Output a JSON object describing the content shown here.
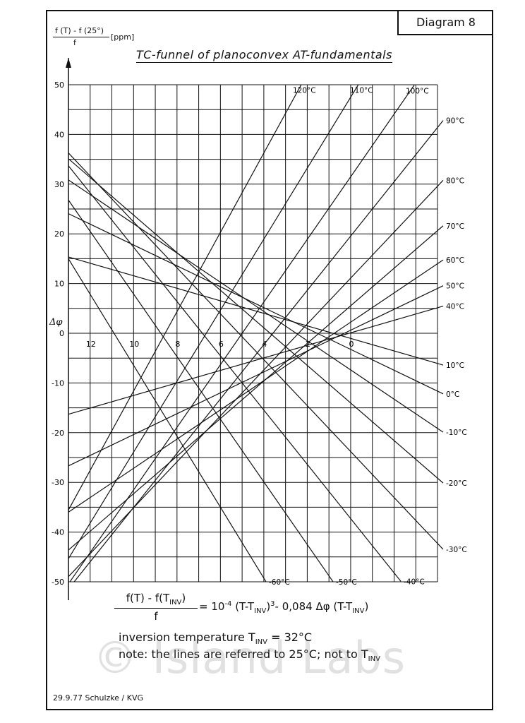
{
  "diagram_number": "Diagram 8",
  "y_axis_label": {
    "numerator": "f (T) - f (25°)",
    "denominator": "f",
    "unit": "[ppm]"
  },
  "chart_data": {
    "type": "line",
    "title": "TC-funnel of planoconvex AT-fundamentals",
    "xlabel": "Δφ",
    "ylabel": "f (T) - f (25°) / f [ppm]",
    "xlim": [
      13.0,
      -4.0
    ],
    "ylim": [
      -50,
      50
    ],
    "x_reversed": true,
    "grid": true,
    "x_ticks": [
      12,
      10,
      8,
      6,
      4,
      2,
      0
    ],
    "y_ticks": [
      50,
      40,
      30,
      20,
      10,
      0,
      -10,
      -20,
      -30,
      -40,
      -50
    ],
    "inversion_temperature_c": 32,
    "reference_temperature_c": 25,
    "series": [
      {
        "name": "120°C",
        "temperature": 120
      },
      {
        "name": "110°C",
        "temperature": 110
      },
      {
        "name": "100°C",
        "temperature": 100
      },
      {
        "name": "90°C",
        "temperature": 90
      },
      {
        "name": "80°C",
        "temperature": 80
      },
      {
        "name": "70°C",
        "temperature": 70
      },
      {
        "name": "60°C",
        "temperature": 60
      },
      {
        "name": "50°C",
        "temperature": 50
      },
      {
        "name": "40°C",
        "temperature": 40
      },
      {
        "name": "10°C",
        "temperature": 10
      },
      {
        "name": "0°C",
        "temperature": 0
      },
      {
        "name": "-10°C",
        "temperature": -10
      },
      {
        "name": "-20°C",
        "temperature": -20
      },
      {
        "name": "-30°C",
        "temperature": -30
      },
      {
        "name": "-40°C",
        "temperature": -40
      },
      {
        "name": "-50°C",
        "temperature": -50
      },
      {
        "name": "-60°C",
        "temperature": -60
      }
    ]
  },
  "formula": {
    "lhs_numerator": "f(T) - f(T",
    "lhs_numerator_sub": "INV",
    "lhs_numerator_end": ")",
    "lhs_denominator": "f",
    "equals_coeff": "= 10",
    "exponent": "-4",
    "term1_open": " (T-T",
    "term1_sub": "INV",
    "term1_close": ")",
    "term1_exp": "3",
    "term2_open": "- 0,084 Δφ (T-T",
    "term2_sub": "INV",
    "term2_close": ")"
  },
  "inversion": {
    "text": "inversion temperature  T",
    "sub": "INV",
    "value": " = 32°C"
  },
  "note": {
    "text": "note: the lines are referred to 25°C; not to T",
    "sub": "INV"
  },
  "footer": "29.9.77 Schulzke / KVG",
  "watermark": "© Island Labs"
}
